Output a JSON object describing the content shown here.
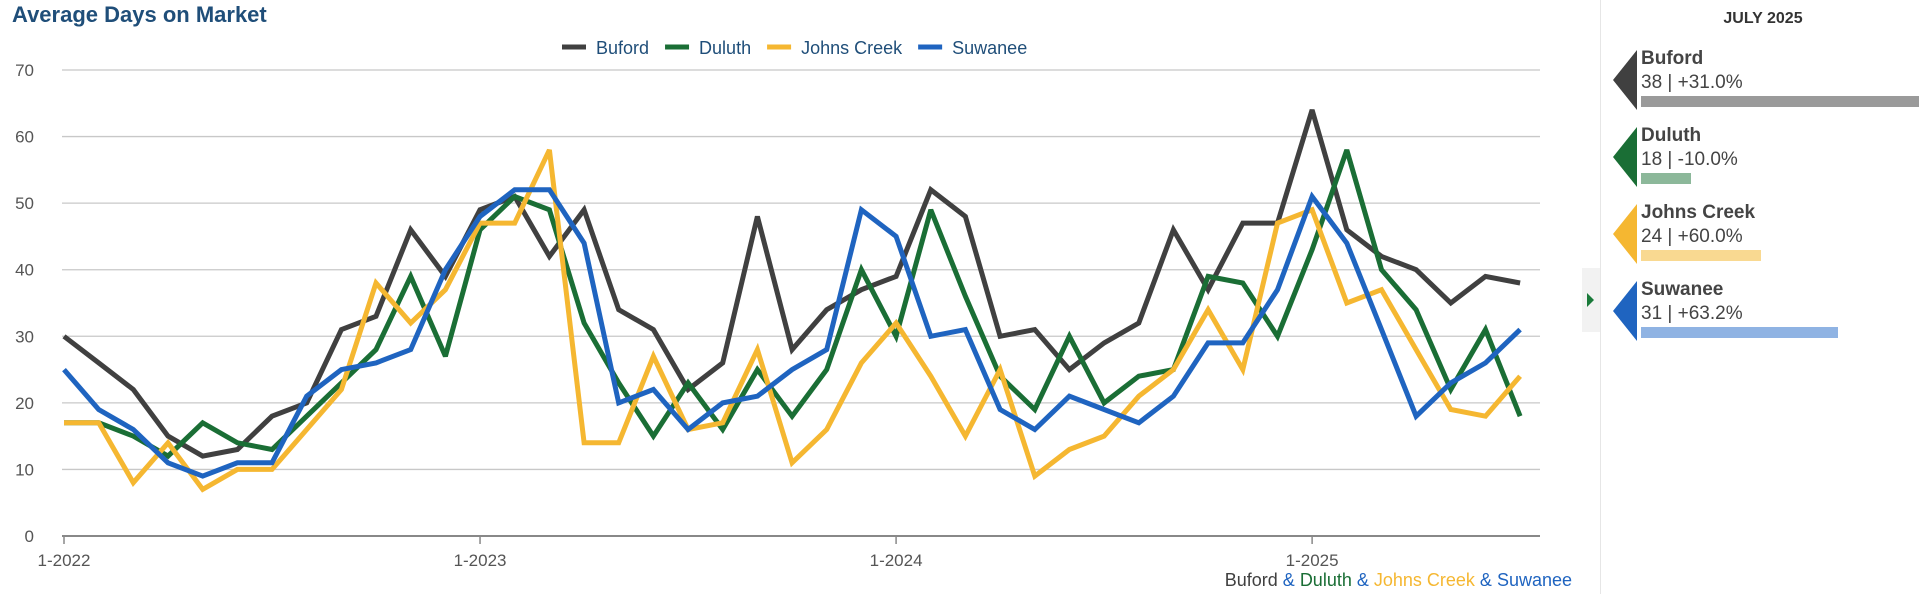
{
  "chart_data": {
    "type": "line",
    "title": "Average Days on Market",
    "ylim": [
      0,
      70
    ],
    "yticks": [
      0,
      10,
      20,
      30,
      40,
      50,
      60,
      70
    ],
    "xticks": [
      "1-2022",
      "1-2023",
      "1-2024",
      "1-2025"
    ],
    "grid": true,
    "legend_position": "top-center",
    "x": [
      "2022-01",
      "2022-02",
      "2022-03",
      "2022-04",
      "2022-05",
      "2022-06",
      "2022-07",
      "2022-08",
      "2022-09",
      "2022-10",
      "2022-11",
      "2022-12",
      "2023-01",
      "2023-02",
      "2023-03",
      "2023-04",
      "2023-05",
      "2023-06",
      "2023-07",
      "2023-08",
      "2023-09",
      "2023-10",
      "2023-11",
      "2023-12",
      "2024-01",
      "2024-02",
      "2024-03",
      "2024-04",
      "2024-05",
      "2024-06",
      "2024-07",
      "2024-08",
      "2024-09",
      "2024-10",
      "2024-11",
      "2024-12",
      "2025-01",
      "2025-02",
      "2025-03",
      "2025-04",
      "2025-05",
      "2025-06",
      "2025-07"
    ],
    "series": [
      {
        "name": "Buford",
        "color": "#404040",
        "values": [
          30,
          26,
          22,
          15,
          12,
          13,
          18,
          20,
          31,
          33,
          46,
          39,
          49,
          51,
          42,
          49,
          34,
          31,
          22,
          26,
          48,
          28,
          34,
          37,
          39,
          52,
          48,
          30,
          31,
          25,
          29,
          32,
          46,
          37,
          47,
          47,
          64,
          46,
          42,
          40,
          35,
          39,
          38
        ]
      },
      {
        "name": "Duluth",
        "color": "#1a6e35",
        "values": [
          17,
          17,
          15,
          12,
          17,
          14,
          13,
          18,
          23,
          28,
          39,
          27,
          46,
          51,
          49,
          32,
          23,
          15,
          23,
          16,
          25,
          18,
          25,
          40,
          30,
          49,
          36,
          24,
          19,
          30,
          20,
          24,
          25,
          39,
          38,
          30,
          43,
          58,
          40,
          34,
          22,
          31,
          18
        ]
      },
      {
        "name": "Johns Creek",
        "color": "#f5b731",
        "values": [
          17,
          17,
          8,
          14,
          7,
          10,
          10,
          16,
          22,
          38,
          32,
          37,
          47,
          47,
          58,
          14,
          14,
          27,
          16,
          17,
          28,
          11,
          16,
          26,
          32,
          24,
          15,
          25,
          9,
          13,
          15,
          21,
          25,
          34,
          25,
          47,
          49,
          35,
          37,
          28,
          19,
          18,
          24
        ]
      },
      {
        "name": "Suwanee",
        "color": "#1f64c0",
        "values": [
          25,
          19,
          16,
          11,
          9,
          11,
          11,
          21,
          25,
          26,
          28,
          40,
          48,
          52,
          52,
          44,
          20,
          22,
          16,
          20,
          21,
          25,
          28,
          49,
          45,
          30,
          31,
          19,
          16,
          21,
          19,
          17,
          21,
          29,
          29,
          37,
          51,
          44,
          31,
          18,
          23,
          26,
          31
        ]
      }
    ]
  },
  "footer": {
    "names": [
      {
        "text": "Buford",
        "color": "#404040"
      },
      {
        "text": " & ",
        "color": "#1f64c0"
      },
      {
        "text": "Duluth",
        "color": "#1a6e35"
      },
      {
        "text": " & ",
        "color": "#1f64c0"
      },
      {
        "text": "Johns Creek",
        "color": "#f5b731"
      },
      {
        "text": " & ",
        "color": "#1f64c0"
      },
      {
        "text": "Suwanee",
        "color": "#1f64c0"
      }
    ]
  },
  "sidebar": {
    "period": "JULY 2025",
    "cards": [
      {
        "name": "Buford",
        "value": "38 | +31.0%",
        "color": "#404040",
        "bar_color": "#9a9a9a",
        "change_fraction": 1.0
      },
      {
        "name": "Duluth",
        "value": "18 | -10.0%",
        "color": "#1a6e35",
        "bar_color": "#8cb89a",
        "change_fraction": 0.18
      },
      {
        "name": "Johns Creek",
        "value": "24 | +60.0%",
        "color": "#f5b731",
        "bar_color": "#f9d991",
        "change_fraction": 0.43
      },
      {
        "name": "Suwanee",
        "value": "31 | +63.2%",
        "color": "#1f64c0",
        "bar_color": "#8fb3e3",
        "change_fraction": 0.71
      }
    ]
  }
}
